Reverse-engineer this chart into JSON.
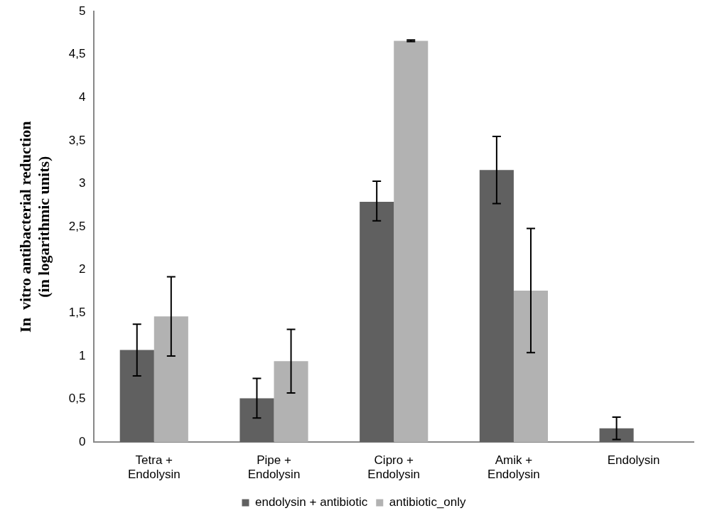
{
  "chart_data": {
    "type": "bar",
    "ylabel": "In  vitro antibacterial reduction\n(in logarithmic units)",
    "categories": [
      "Tetra +\nEndolysin",
      "Pipe +\nEndolysin",
      "Cipro +\nEndolysin",
      "Amik +\nEndolysin",
      "Endolysin"
    ],
    "series": [
      {
        "name": "endolysin + antibiotic",
        "color": "#606060",
        "values": [
          1.07,
          0.51,
          2.79,
          3.16,
          0.16
        ],
        "errors": [
          [
            0.77,
            1.37
          ],
          [
            0.28,
            0.74
          ],
          [
            2.57,
            3.03
          ],
          [
            2.77,
            3.55
          ],
          [
            0.03,
            0.29
          ]
        ]
      },
      {
        "name": "antibiotic_only",
        "color": "#b2b2b2",
        "values": [
          1.46,
          0.94,
          4.66,
          1.76,
          null
        ],
        "errors": [
          [
            1.0,
            1.92
          ],
          [
            0.57,
            1.31
          ],
          [
            4.65,
            4.67
          ],
          [
            1.04,
            2.48
          ],
          null
        ]
      }
    ],
    "ylim": [
      0,
      5
    ],
    "yticks": [
      0,
      {
        "value": 0.5,
        "label": "0,5"
      },
      1,
      {
        "value": 1.5,
        "label": "1,5"
      },
      2,
      {
        "value": 2.5,
        "label": "2,5"
      },
      3,
      {
        "value": 3.5,
        "label": "3,5"
      },
      4,
      {
        "value": 4.5,
        "label": "4,5"
      },
      5
    ],
    "grid": false,
    "legend": "bottom"
  }
}
